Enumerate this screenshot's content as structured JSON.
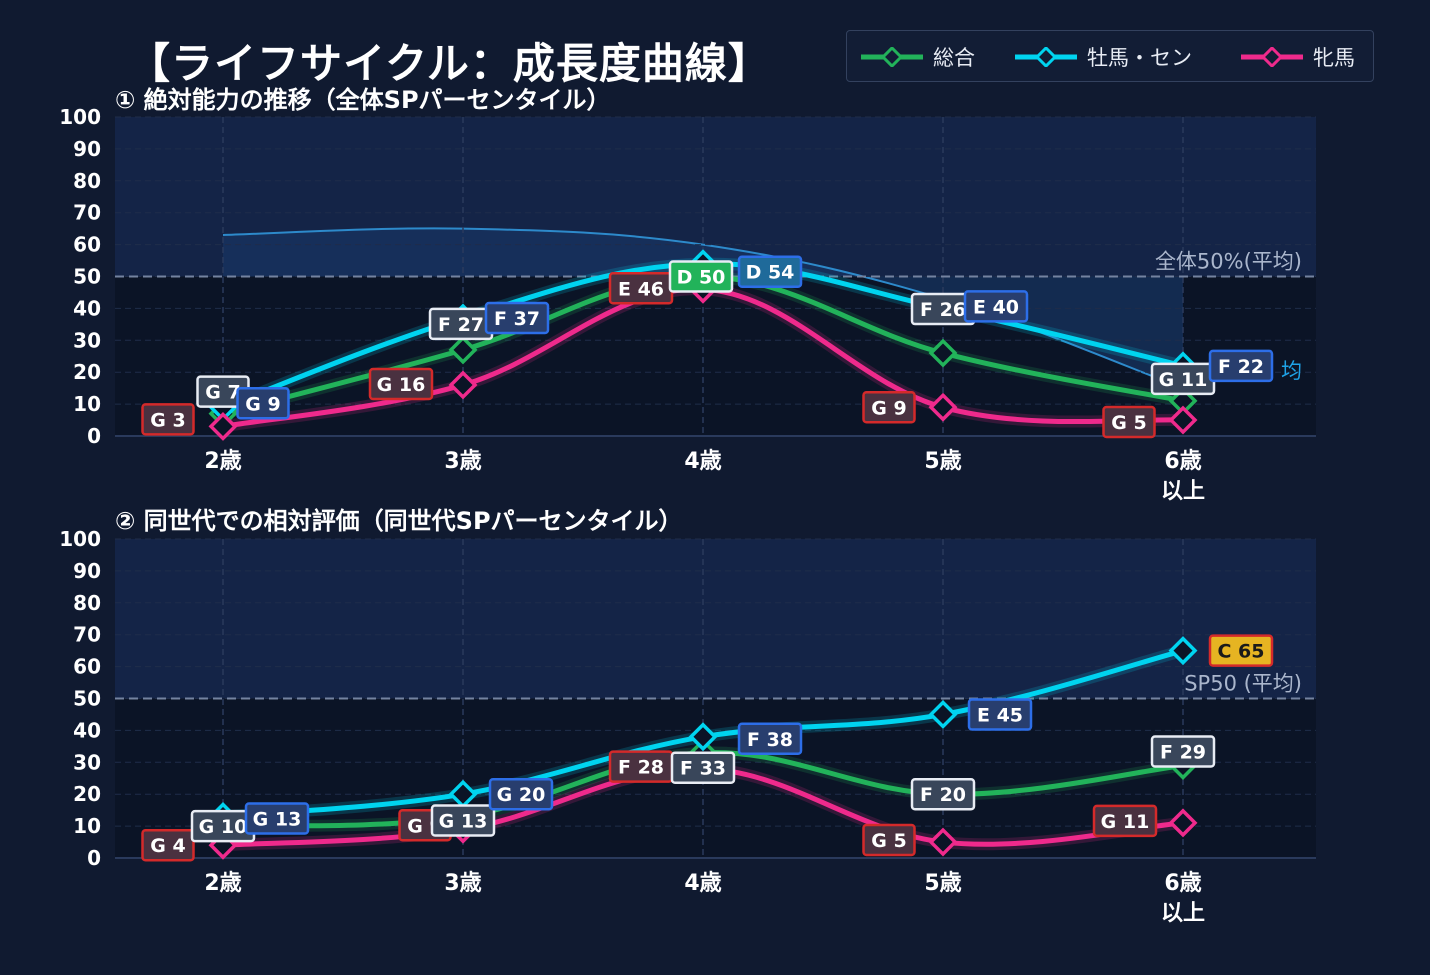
{
  "title": "【ライフサイクル：成長度曲線】",
  "legend": [
    {
      "name": "総合",
      "color": "#22b35a"
    },
    {
      "name": "牡馬・セン",
      "color": "#00d4f0"
    },
    {
      "name": "牝馬",
      "color": "#ef2a8c"
    }
  ],
  "colors": {
    "overall": "#22b35a",
    "male": "#00d4f0",
    "female": "#ef2a8c",
    "gold": "#e6b422",
    "background": "#101a30"
  },
  "chart_data": [
    {
      "type": "line",
      "title": "① 絶対能力の推移（全体SPパーセンタイル）",
      "categories": [
        "2歳",
        "3歳",
        "4歳",
        "5歳",
        "6歳\n以上"
      ],
      "ylim": [
        0,
        100
      ],
      "yticks": [
        0,
        10,
        20,
        30,
        40,
        50,
        60,
        70,
        80,
        90,
        100
      ],
      "reference_line": {
        "value": 50,
        "label": "全体50%(平均)"
      },
      "series": [
        {
          "name": "総合",
          "values": [
            7,
            27,
            50,
            26,
            11
          ],
          "labels": [
            "G 7",
            "F 27",
            "D 50",
            "F 26",
            "G 11"
          ]
        },
        {
          "name": "牡馬・セン",
          "values": [
            9,
            37,
            54,
            40,
            22
          ],
          "labels": [
            "G 9",
            "F 37",
            "D 54",
            "E 40",
            "F 22"
          ]
        },
        {
          "name": "牝馬",
          "values": [
            3,
            16,
            46,
            9,
            5
          ],
          "labels": [
            "G 3",
            "G 16",
            "E 46",
            "G 9",
            "G 5"
          ]
        }
      ],
      "background_curve": [
        63,
        65,
        60,
        43,
        15
      ],
      "partial_label": "均"
    },
    {
      "type": "line",
      "title": "② 同世代での相対評価（同世代SPパーセンタイル）",
      "categories": [
        "2歳",
        "3歳",
        "4歳",
        "5歳",
        "6歳\n以上"
      ],
      "ylim": [
        0,
        100
      ],
      "yticks": [
        0,
        10,
        20,
        30,
        40,
        50,
        60,
        70,
        80,
        90,
        100
      ],
      "reference_line": {
        "value": 50,
        "label": "SP50 (平均)"
      },
      "series": [
        {
          "name": "総合",
          "values": [
            10,
            13,
            33,
            20,
            29
          ],
          "labels": [
            "G 10",
            "G 13",
            "F 33",
            "F 20",
            "F 29"
          ]
        },
        {
          "name": "牡馬・セン",
          "values": [
            13,
            20,
            38,
            45,
            65
          ],
          "labels": [
            "G 13",
            "G 20",
            "F 38",
            "E 45",
            "C 65"
          ]
        },
        {
          "name": "牝馬",
          "values": [
            4,
            9,
            28,
            5,
            11
          ],
          "labels": [
            "G 4",
            "G 9",
            "F 28",
            "G 5",
            "G 11"
          ]
        }
      ]
    }
  ]
}
